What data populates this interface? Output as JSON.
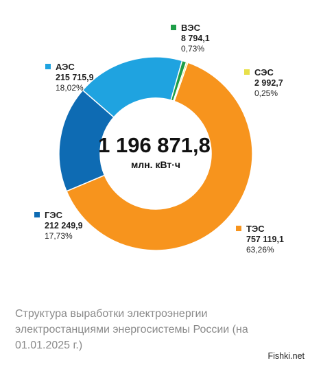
{
  "chart_data": {
    "type": "donut",
    "total": "1 196 871,8",
    "unit": "млн. кВт·ч",
    "segments": [
      {
        "name": "ТЭС",
        "value_text": "757 119,1",
        "percent_text": "63,26%",
        "value": 757119.1,
        "percent": 63.26,
        "color": "#F7941D"
      },
      {
        "name": "ГЭС",
        "value_text": "212 249,9",
        "percent_text": "17,73%",
        "value": 212249.9,
        "percent": 17.73,
        "color": "#0E6BB3"
      },
      {
        "name": "АЭС",
        "value_text": "215 715,9",
        "percent_text": "18,02%",
        "value": 215715.9,
        "percent": 18.02,
        "color": "#1FA3E0"
      },
      {
        "name": "ВЭС",
        "value_text": "8 794,1",
        "percent_text": "0,73%",
        "value": 8794.1,
        "percent": 0.73,
        "color": "#1E9E48"
      },
      {
        "name": "СЭС",
        "value_text": "2 992,7",
        "percent_text": "0,25%",
        "value": 2992.7,
        "percent": 0.25,
        "color": "#E8E04A"
      }
    ]
  },
  "caption": "Структура выработки электроэнергии электростанциями энергосистемы России (на 01.01.2025 г.)",
  "watermark": "Fishki.net"
}
